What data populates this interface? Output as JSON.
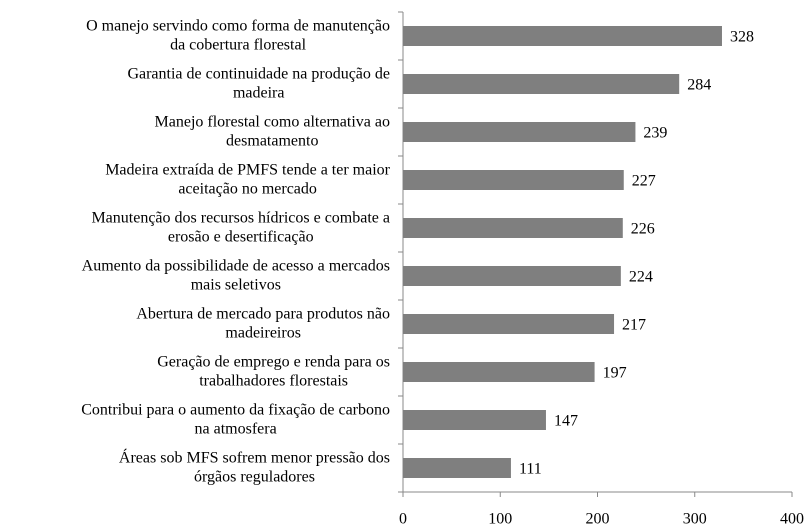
{
  "chart_data": {
    "type": "barh",
    "categories": [
      [
        "O manejo servindo como forma de manutenção",
        "da cobertura florestal"
      ],
      [
        "Garantia de continuidade na produção de",
        "madeira"
      ],
      [
        "Manejo florestal como alternativa ao",
        "desmatamento"
      ],
      [
        "Madeira extraída de PMFS tende a ter maior",
        "aceitação no mercado"
      ],
      [
        "Manutenção dos recursos hídricos e combate a",
        "erosão e desertificação"
      ],
      [
        "Aumento da possibilidade de acesso a mercados",
        "mais seletivos"
      ],
      [
        "Abertura de mercado para produtos não",
        "madeireiros"
      ],
      [
        "Geração de emprego e renda para os",
        "trabalhadores florestais"
      ],
      [
        "Contribui para o aumento da fixação de carbono",
        "na atmosfera"
      ],
      [
        "Áreas sob MFS sofrem menor pressão dos",
        "órgãos reguladores"
      ]
    ],
    "values": [
      328,
      284,
      239,
      227,
      226,
      224,
      217,
      197,
      147,
      111
    ],
    "color": "#7f7f7f",
    "xlim": [
      0,
      400
    ],
    "xticks": [
      0,
      100,
      200,
      300,
      400
    ],
    "grid": false
  }
}
